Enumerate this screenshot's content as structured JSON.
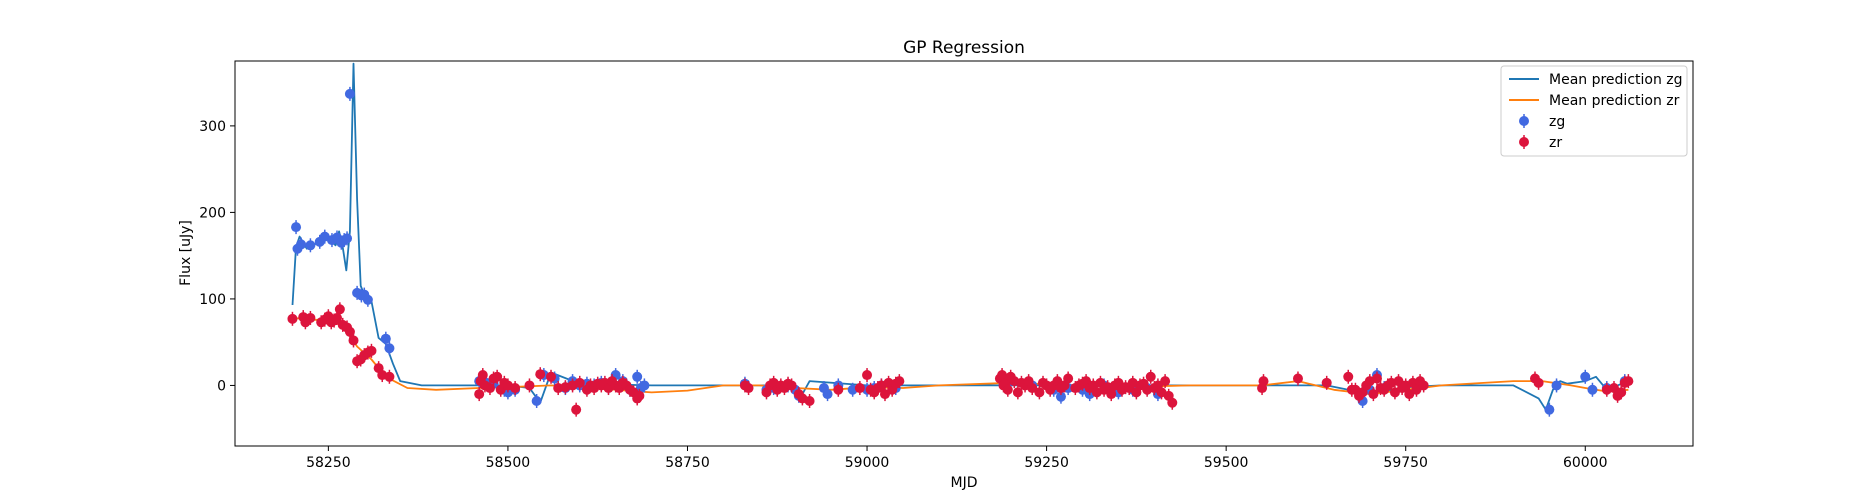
{
  "chart_data": {
    "type": "scatter",
    "title": "GP Regression",
    "xlabel": "MJD",
    "ylabel": "Flux [uJy]",
    "xlim": [
      58120,
      60150
    ],
    "ylim": [
      -70,
      375
    ],
    "xticks": [
      58250,
      58500,
      58750,
      59000,
      59250,
      59500,
      59750,
      60000
    ],
    "yticks": [
      0,
      100,
      200,
      300
    ],
    "legend_position": "upper right",
    "legend": [
      "Mean prediction zg",
      "Mean prediction zr",
      "zg",
      "zr"
    ],
    "colors": {
      "mean_zg": "#1f77b4",
      "mean_zr": "#ff7f0e",
      "zg": "#4169e1",
      "zr": "#dc143c"
    },
    "lines": [
      {
        "name": "Mean prediction zg",
        "color": "#1f77b4",
        "x": [
          58200,
          58205,
          58210,
          58220,
          58235,
          58250,
          58260,
          58265,
          58270,
          58275,
          58280,
          58285,
          58290,
          58295,
          58300,
          58310,
          58320,
          58330,
          58340,
          58350,
          58380,
          58500,
          58530,
          58545,
          58560,
          58600,
          58700,
          58900,
          58905,
          58910,
          58920,
          59000,
          59100,
          59200,
          59300,
          59400,
          59500,
          59600,
          59640,
          59700,
          59750,
          59800,
          59900,
          59935,
          59945,
          59955,
          59965,
          59975,
          60000,
          60015,
          60030,
          60060
        ],
        "y": [
          93,
          160,
          172,
          158,
          165,
          170,
          162,
          178,
          160,
          133,
          178,
          372,
          215,
          115,
          105,
          97,
          55,
          48,
          25,
          5,
          0,
          0,
          -3,
          -20,
          15,
          2,
          0,
          0,
          -12,
          -10,
          5,
          0,
          0,
          0,
          0,
          0,
          0,
          0,
          0,
          -10,
          -2,
          0,
          0,
          -15,
          -28,
          -5,
          5,
          2,
          5,
          10,
          -5,
          5
        ]
      },
      {
        "name": "Mean prediction zr",
        "color": "#ff7f0e",
        "x": [
          58200,
          58230,
          58250,
          58270,
          58290,
          58310,
          58330,
          58360,
          58400,
          58460,
          58500,
          58560,
          58600,
          58700,
          58750,
          58800,
          58850,
          58900,
          58950,
          59000,
          59050,
          59100,
          59200,
          59300,
          59400,
          59450,
          59500,
          59550,
          59600,
          59650,
          59700,
          59750,
          59800,
          59900,
          59940,
          59980,
          60000,
          60030,
          60060
        ],
        "y": [
          78,
          76,
          75,
          70,
          45,
          30,
          10,
          -3,
          -5,
          -3,
          -2,
          0,
          -2,
          -8,
          -6,
          0,
          0,
          -3,
          -5,
          -2,
          -3,
          0,
          3,
          0,
          -1,
          0,
          0,
          0,
          5,
          -5,
          -10,
          -5,
          0,
          5,
          5,
          0,
          -3,
          -7,
          -5
        ]
      }
    ],
    "series": [
      {
        "name": "zg",
        "color": "#4169e1",
        "x": [
          58205,
          58207,
          58212,
          58225,
          58238,
          58245,
          58255,
          58262,
          58268,
          58272,
          58276,
          58280,
          58290,
          58296,
          58300,
          58305,
          58330,
          58335,
          58460,
          58470,
          58480,
          58495,
          58500,
          58510,
          58540,
          58550,
          58565,
          58580,
          58590,
          58600,
          58610,
          58620,
          58630,
          58640,
          58650,
          58660,
          58670,
          58680,
          58685,
          58690,
          58830,
          58860,
          58870,
          58890,
          58900,
          58905,
          58940,
          58945,
          58960,
          58980,
          59000,
          59010,
          59020,
          59040,
          59190,
          59200,
          59230,
          59260,
          59270,
          59280,
          59300,
          59310,
          59330,
          59350,
          59370,
          59390,
          59405,
          59690,
          59700,
          59710,
          59720,
          59950,
          59960,
          60000,
          60010,
          60030,
          60055
        ],
        "y": [
          183,
          158,
          163,
          162,
          166,
          172,
          168,
          171,
          165,
          168,
          170,
          337,
          107,
          104,
          105,
          99,
          54,
          43,
          5,
          3,
          2,
          -5,
          -8,
          -5,
          -18,
          12,
          8,
          -3,
          5,
          0,
          2,
          0,
          3,
          -2,
          12,
          5,
          -5,
          10,
          -3,
          0,
          2,
          -5,
          -3,
          0,
          -5,
          -12,
          -3,
          -10,
          0,
          -5,
          -5,
          -3,
          0,
          -3,
          3,
          5,
          0,
          -5,
          -13,
          -3,
          -5,
          -10,
          0,
          -8,
          -5,
          -3,
          -10,
          -18,
          -5,
          12,
          -3,
          -28,
          0,
          10,
          -5,
          -3,
          5
        ]
      },
      {
        "name": "zr",
        "color": "#dc143c",
        "x": [
          58200,
          58215,
          58218,
          58225,
          58240,
          58245,
          58250,
          58254,
          58258,
          58262,
          58266,
          58270,
          58276,
          58280,
          58285,
          58290,
          58295,
          58300,
          58305,
          58310,
          58320,
          58325,
          58335,
          58460,
          58462,
          58465,
          58468,
          58475,
          58480,
          58485,
          58490,
          58495,
          58500,
          58510,
          58530,
          58545,
          58560,
          58570,
          58580,
          58590,
          58595,
          58600,
          58610,
          58615,
          58620,
          58625,
          58630,
          58635,
          58640,
          58645,
          58650,
          58655,
          58660,
          58665,
          58670,
          58675,
          58680,
          58683,
          58830,
          58835,
          58860,
          58865,
          58870,
          58875,
          58880,
          58885,
          58890,
          58895,
          58905,
          58910,
          58920,
          58960,
          58990,
          59000,
          59005,
          59010,
          59015,
          59020,
          59025,
          59030,
          59035,
          59040,
          59045,
          59185,
          59188,
          59190,
          59193,
          59196,
          59200,
          59205,
          59210,
          59215,
          59220,
          59225,
          59230,
          59240,
          59245,
          59250,
          59255,
          59260,
          59265,
          59270,
          59275,
          59280,
          59290,
          59295,
          59300,
          59305,
          59310,
          59315,
          59320,
          59325,
          59330,
          59335,
          59340,
          59345,
          59350,
          59355,
          59360,
          59365,
          59370,
          59375,
          59380,
          59385,
          59390,
          59395,
          59400,
          59405,
          59410,
          59415,
          59420,
          59425,
          59550,
          59552,
          59600,
          59640,
          59670,
          59675,
          59680,
          59685,
          59690,
          59695,
          59700,
          59705,
          59710,
          59715,
          59720,
          59725,
          59730,
          59735,
          59740,
          59745,
          59750,
          59755,
          59760,
          59765,
          59770,
          59775,
          59930,
          59935,
          60030,
          60040,
          60045,
          60050,
          60055,
          60060
        ],
        "y": [
          77,
          79,
          73,
          78,
          73,
          76,
          80,
          73,
          75,
          78,
          88,
          70,
          67,
          62,
          52,
          28,
          30,
          35,
          38,
          40,
          20,
          12,
          10,
          -10,
          5,
          12,
          0,
          -3,
          8,
          10,
          -5,
          3,
          0,
          -3,
          0,
          13,
          10,
          -3,
          -2,
          0,
          -28,
          3,
          -5,
          0,
          -3,
          2,
          0,
          3,
          -3,
          5,
          0,
          -3,
          3,
          0,
          -5,
          -8,
          -15,
          -12,
          0,
          -3,
          -8,
          0,
          3,
          -5,
          0,
          -3,
          2,
          0,
          -10,
          -15,
          -18,
          -5,
          -3,
          12,
          -5,
          -8,
          -3,
          0,
          -10,
          3,
          -5,
          2,
          5,
          8,
          12,
          0,
          3,
          -5,
          10,
          5,
          -8,
          3,
          0,
          5,
          -3,
          -8,
          3,
          0,
          -5,
          0,
          5,
          -3,
          0,
          8,
          -3,
          0,
          2,
          5,
          -3,
          0,
          -8,
          3,
          -5,
          -2,
          -10,
          0,
          3,
          -5,
          -2,
          -3,
          3,
          -8,
          0,
          2,
          -5,
          10,
          -3,
          0,
          -8,
          5,
          -12,
          -20,
          -3,
          5,
          8,
          3,
          10,
          -5,
          -5,
          -12,
          -8,
          0,
          5,
          -10,
          8,
          -3,
          -5,
          0,
          3,
          -8,
          5,
          -3,
          0,
          -10,
          3,
          -5,
          5,
          0,
          8,
          3,
          -5,
          -3,
          -12,
          -8,
          3,
          5
        ]
      }
    ]
  }
}
